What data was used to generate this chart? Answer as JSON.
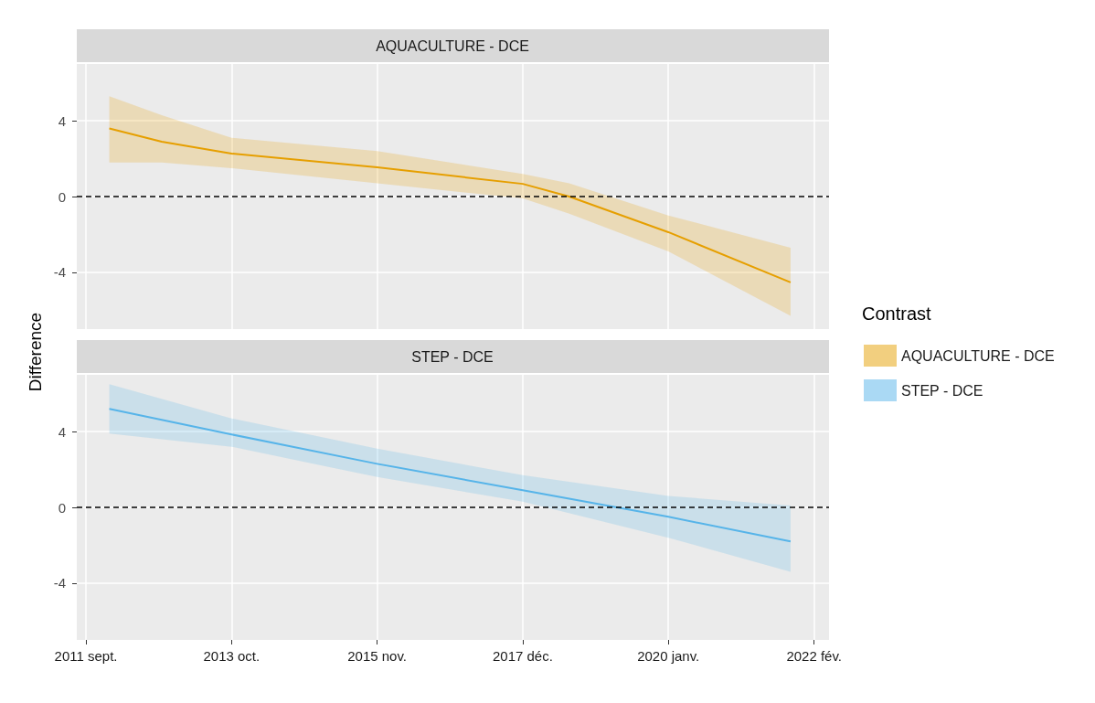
{
  "chart_data": [
    {
      "type": "line",
      "title": "AQUACULTURE - DCE",
      "ylabel": "Difference",
      "legend_title": "Contrast",
      "legend": "right",
      "grid": true,
      "tick_labels": "y",
      "xlim": [
        "2011-07-15",
        "2022-04-20"
      ],
      "xticks": [
        {
          "value": "2011-09-01",
          "label": null
        },
        {
          "value": "2013-10-01",
          "label": null
        },
        {
          "value": "2015-11-01",
          "label": null
        },
        {
          "value": "2017-12-01",
          "label": null
        },
        {
          "value": "2020-01-01",
          "label": null
        },
        {
          "value": "2022-02-01",
          "label": null
        }
      ],
      "ylim": [
        -7,
        7
      ],
      "yticks": [
        -4,
        0,
        4
      ],
      "series": [
        {
          "name": "AQUACULTURE - DCE",
          "color": "#e69f00",
          "x": [
            "2012-01-01",
            "2012-10-01",
            "2013-10-01",
            "2015-11-01",
            "2017-12-01",
            "2018-08-01",
            "2020-01-01",
            "2021-10-01"
          ],
          "values": [
            3.6,
            2.9,
            2.27,
            1.54,
            0.67,
            0.0,
            -1.88,
            -4.53
          ],
          "lower": [
            1.8,
            1.8,
            1.5,
            0.7,
            -0.1,
            -0.9,
            -2.9,
            -6.3
          ],
          "upper": [
            5.3,
            4.3,
            3.1,
            2.4,
            1.2,
            0.7,
            -1.0,
            -2.7
          ]
        }
      ],
      "ref_lines": [
        {
          "axis": "y",
          "value": 0,
          "line_style": "dashed",
          "color": "#000000"
        }
      ]
    },
    {
      "type": "line",
      "title": "STEP - DCE",
      "legend": "right",
      "grid": true,
      "xlim": [
        "2011-07-15",
        "2022-04-20"
      ],
      "xticks": [
        {
          "value": "2011-09-01",
          "label": "2011 sept."
        },
        {
          "value": "2013-10-01",
          "label": "2013 oct."
        },
        {
          "value": "2015-11-01",
          "label": "2015 nov."
        },
        {
          "value": "2017-12-01",
          "label": "2017 déc."
        },
        {
          "value": "2020-01-01",
          "label": "2020 janv."
        },
        {
          "value": "2022-02-01",
          "label": "2022 fév."
        }
      ],
      "ylim": [
        -7,
        7
      ],
      "yticks": [
        -4,
        0,
        4
      ],
      "series": [
        {
          "name": "STEP - DCE",
          "color": "#56b4e9",
          "x": [
            "2012-01-01",
            "2013-10-01",
            "2015-11-01",
            "2017-12-01",
            "2020-01-01",
            "2021-10-01"
          ],
          "values": [
            5.2,
            3.85,
            2.3,
            0.9,
            -0.5,
            -1.8
          ],
          "lower": [
            3.9,
            3.2,
            1.6,
            0.3,
            -1.6,
            -3.4
          ],
          "upper": [
            6.5,
            4.7,
            3.1,
            1.7,
            0.6,
            0.1
          ]
        }
      ],
      "ref_lines": [
        {
          "axis": "y",
          "value": 0,
          "line_style": "dashed",
          "color": "#000000"
        }
      ]
    }
  ]
}
